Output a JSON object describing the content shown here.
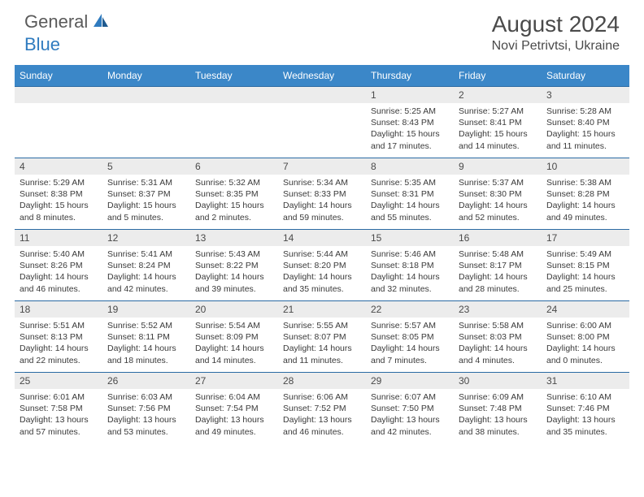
{
  "logo": {
    "text1": "General",
    "text2": "Blue"
  },
  "title": "August 2024",
  "location": "Novi Petrivtsi, Ukraine",
  "colors": {
    "header_bg": "#3b87c8",
    "header_text": "#ffffff",
    "daynum_bg": "#ececec",
    "text": "#4a4a4a",
    "row_border": "#2a6aa3",
    "logo_gray": "#5a5a5a",
    "logo_blue": "#2f7bbf"
  },
  "day_headers": [
    "Sunday",
    "Monday",
    "Tuesday",
    "Wednesday",
    "Thursday",
    "Friday",
    "Saturday"
  ],
  "weeks": [
    [
      null,
      null,
      null,
      null,
      {
        "n": "1",
        "sr": "Sunrise: 5:25 AM",
        "ss": "Sunset: 8:43 PM",
        "d1": "Daylight: 15 hours",
        "d2": "and 17 minutes."
      },
      {
        "n": "2",
        "sr": "Sunrise: 5:27 AM",
        "ss": "Sunset: 8:41 PM",
        "d1": "Daylight: 15 hours",
        "d2": "and 14 minutes."
      },
      {
        "n": "3",
        "sr": "Sunrise: 5:28 AM",
        "ss": "Sunset: 8:40 PM",
        "d1": "Daylight: 15 hours",
        "d2": "and 11 minutes."
      }
    ],
    [
      {
        "n": "4",
        "sr": "Sunrise: 5:29 AM",
        "ss": "Sunset: 8:38 PM",
        "d1": "Daylight: 15 hours",
        "d2": "and 8 minutes."
      },
      {
        "n": "5",
        "sr": "Sunrise: 5:31 AM",
        "ss": "Sunset: 8:37 PM",
        "d1": "Daylight: 15 hours",
        "d2": "and 5 minutes."
      },
      {
        "n": "6",
        "sr": "Sunrise: 5:32 AM",
        "ss": "Sunset: 8:35 PM",
        "d1": "Daylight: 15 hours",
        "d2": "and 2 minutes."
      },
      {
        "n": "7",
        "sr": "Sunrise: 5:34 AM",
        "ss": "Sunset: 8:33 PM",
        "d1": "Daylight: 14 hours",
        "d2": "and 59 minutes."
      },
      {
        "n": "8",
        "sr": "Sunrise: 5:35 AM",
        "ss": "Sunset: 8:31 PM",
        "d1": "Daylight: 14 hours",
        "d2": "and 55 minutes."
      },
      {
        "n": "9",
        "sr": "Sunrise: 5:37 AM",
        "ss": "Sunset: 8:30 PM",
        "d1": "Daylight: 14 hours",
        "d2": "and 52 minutes."
      },
      {
        "n": "10",
        "sr": "Sunrise: 5:38 AM",
        "ss": "Sunset: 8:28 PM",
        "d1": "Daylight: 14 hours",
        "d2": "and 49 minutes."
      }
    ],
    [
      {
        "n": "11",
        "sr": "Sunrise: 5:40 AM",
        "ss": "Sunset: 8:26 PM",
        "d1": "Daylight: 14 hours",
        "d2": "and 46 minutes."
      },
      {
        "n": "12",
        "sr": "Sunrise: 5:41 AM",
        "ss": "Sunset: 8:24 PM",
        "d1": "Daylight: 14 hours",
        "d2": "and 42 minutes."
      },
      {
        "n": "13",
        "sr": "Sunrise: 5:43 AM",
        "ss": "Sunset: 8:22 PM",
        "d1": "Daylight: 14 hours",
        "d2": "and 39 minutes."
      },
      {
        "n": "14",
        "sr": "Sunrise: 5:44 AM",
        "ss": "Sunset: 8:20 PM",
        "d1": "Daylight: 14 hours",
        "d2": "and 35 minutes."
      },
      {
        "n": "15",
        "sr": "Sunrise: 5:46 AM",
        "ss": "Sunset: 8:18 PM",
        "d1": "Daylight: 14 hours",
        "d2": "and 32 minutes."
      },
      {
        "n": "16",
        "sr": "Sunrise: 5:48 AM",
        "ss": "Sunset: 8:17 PM",
        "d1": "Daylight: 14 hours",
        "d2": "and 28 minutes."
      },
      {
        "n": "17",
        "sr": "Sunrise: 5:49 AM",
        "ss": "Sunset: 8:15 PM",
        "d1": "Daylight: 14 hours",
        "d2": "and 25 minutes."
      }
    ],
    [
      {
        "n": "18",
        "sr": "Sunrise: 5:51 AM",
        "ss": "Sunset: 8:13 PM",
        "d1": "Daylight: 14 hours",
        "d2": "and 22 minutes."
      },
      {
        "n": "19",
        "sr": "Sunrise: 5:52 AM",
        "ss": "Sunset: 8:11 PM",
        "d1": "Daylight: 14 hours",
        "d2": "and 18 minutes."
      },
      {
        "n": "20",
        "sr": "Sunrise: 5:54 AM",
        "ss": "Sunset: 8:09 PM",
        "d1": "Daylight: 14 hours",
        "d2": "and 14 minutes."
      },
      {
        "n": "21",
        "sr": "Sunrise: 5:55 AM",
        "ss": "Sunset: 8:07 PM",
        "d1": "Daylight: 14 hours",
        "d2": "and 11 minutes."
      },
      {
        "n": "22",
        "sr": "Sunrise: 5:57 AM",
        "ss": "Sunset: 8:05 PM",
        "d1": "Daylight: 14 hours",
        "d2": "and 7 minutes."
      },
      {
        "n": "23",
        "sr": "Sunrise: 5:58 AM",
        "ss": "Sunset: 8:03 PM",
        "d1": "Daylight: 14 hours",
        "d2": "and 4 minutes."
      },
      {
        "n": "24",
        "sr": "Sunrise: 6:00 AM",
        "ss": "Sunset: 8:00 PM",
        "d1": "Daylight: 14 hours",
        "d2": "and 0 minutes."
      }
    ],
    [
      {
        "n": "25",
        "sr": "Sunrise: 6:01 AM",
        "ss": "Sunset: 7:58 PM",
        "d1": "Daylight: 13 hours",
        "d2": "and 57 minutes."
      },
      {
        "n": "26",
        "sr": "Sunrise: 6:03 AM",
        "ss": "Sunset: 7:56 PM",
        "d1": "Daylight: 13 hours",
        "d2": "and 53 minutes."
      },
      {
        "n": "27",
        "sr": "Sunrise: 6:04 AM",
        "ss": "Sunset: 7:54 PM",
        "d1": "Daylight: 13 hours",
        "d2": "and 49 minutes."
      },
      {
        "n": "28",
        "sr": "Sunrise: 6:06 AM",
        "ss": "Sunset: 7:52 PM",
        "d1": "Daylight: 13 hours",
        "d2": "and 46 minutes."
      },
      {
        "n": "29",
        "sr": "Sunrise: 6:07 AM",
        "ss": "Sunset: 7:50 PM",
        "d1": "Daylight: 13 hours",
        "d2": "and 42 minutes."
      },
      {
        "n": "30",
        "sr": "Sunrise: 6:09 AM",
        "ss": "Sunset: 7:48 PM",
        "d1": "Daylight: 13 hours",
        "d2": "and 38 minutes."
      },
      {
        "n": "31",
        "sr": "Sunrise: 6:10 AM",
        "ss": "Sunset: 7:46 PM",
        "d1": "Daylight: 13 hours",
        "d2": "and 35 minutes."
      }
    ]
  ]
}
